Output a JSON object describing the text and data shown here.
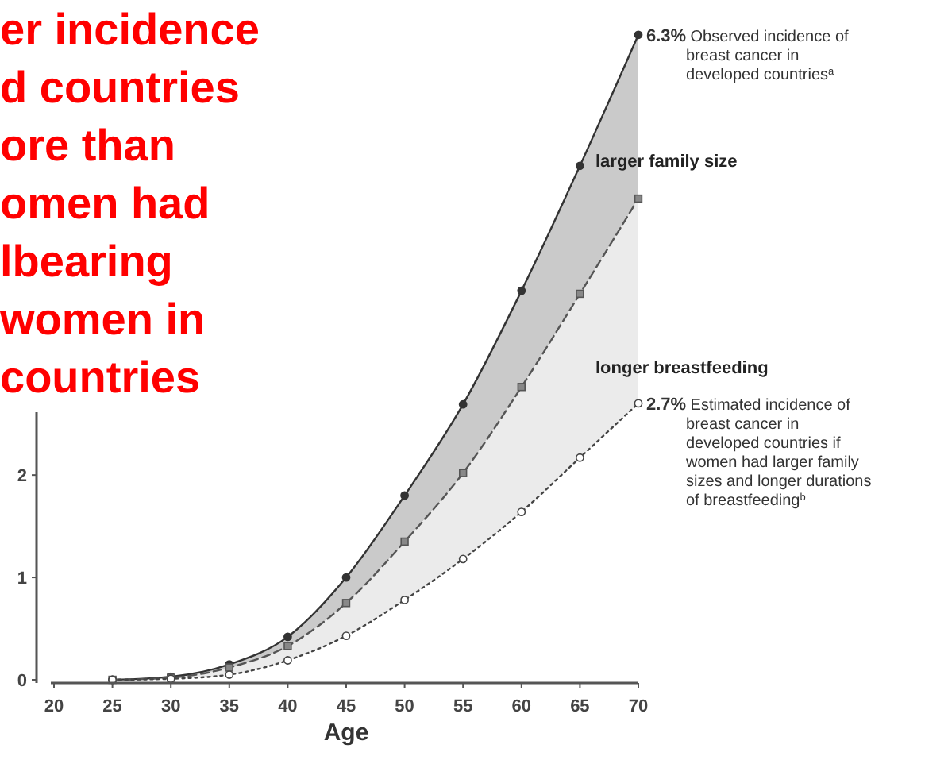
{
  "chart_data": {
    "type": "line",
    "title": "er incidence\nd countries\nore than\nomen had\nlbearing\nwomen in\ncountries",
    "xlabel": "Age",
    "x": [
      25,
      30,
      35,
      40,
      45,
      50,
      55,
      60,
      65,
      70
    ],
    "series": [
      {
        "color": "#333333",
        "line_style": "solid",
        "marker": "circle",
        "values": [
          0,
          0.03,
          0.15,
          0.42,
          1.0,
          1.8,
          2.69,
          3.8,
          5.02,
          6.3
        ]
      },
      {
        "color": "#555555",
        "line_style": "dashed",
        "marker": "square",
        "values": [
          0,
          0.02,
          0.12,
          0.33,
          0.75,
          1.35,
          2.02,
          2.86,
          3.77,
          4.7
        ]
      },
      {
        "color": "#444444",
        "line_style": "dotted",
        "marker": "circle",
        "values": [
          0,
          0.01,
          0.05,
          0.19,
          0.43,
          0.78,
          1.18,
          1.64,
          2.17,
          2.7
        ]
      }
    ],
    "xlim": [
      20,
      70
    ],
    "xticks": [
      20,
      25,
      30,
      35,
      40,
      45,
      50,
      55,
      60,
      65,
      70
    ],
    "ylim": [
      0,
      6.5
    ],
    "yticks": [
      0,
      1,
      2
    ],
    "grid": false,
    "annotations": [
      "6.3% Observed incidence of\nbreast cancer in\ndeveloped countries$^{a}$",
      "larger family size",
      "longer breastfeeding",
      "2.7% Estimated incidence of\nbreast cancer in\ndeveloped countries if\nwomen had larger family\nsizes and longer durations\nof breastfeeding$^{b}$"
    ]
  }
}
